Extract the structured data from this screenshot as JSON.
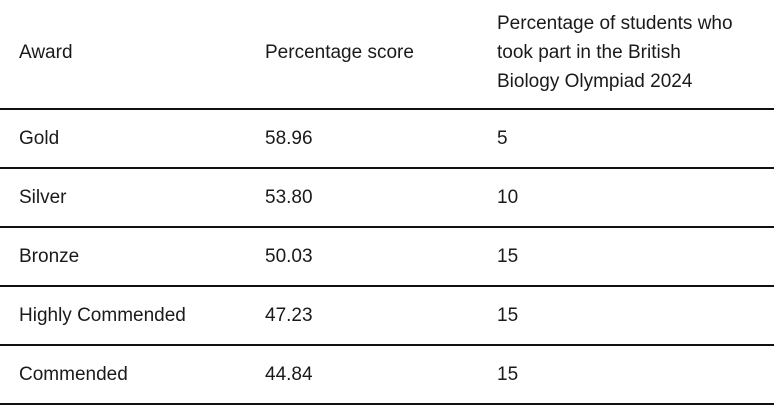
{
  "table": {
    "headers": [
      "Award",
      "Percentage score",
      "Percentage of students who took part in the British Biology Olympiad 2024"
    ],
    "header_lines": [
      "Percentage of students who",
      "took part in the British",
      "Biology Olympiad 2024"
    ],
    "rows": [
      [
        "Gold",
        "58.96",
        "5"
      ],
      [
        "Silver",
        "53.80",
        "10"
      ],
      [
        "Bronze",
        "50.03",
        "15"
      ],
      [
        "Highly Commended",
        "47.23",
        "15"
      ],
      [
        "Commended",
        "44.84",
        "15"
      ]
    ]
  }
}
